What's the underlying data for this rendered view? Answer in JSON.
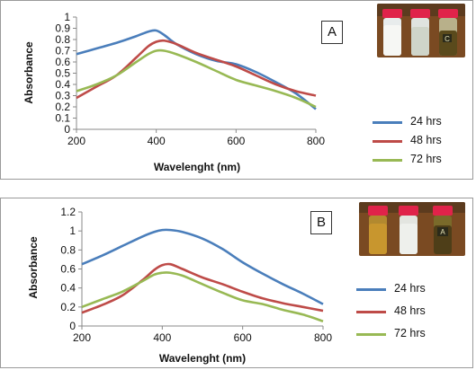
{
  "chart_data": [
    {
      "panel": "A",
      "type": "line",
      "xlabel": "Wavelenght (nm)",
      "ylabel": "Absorbance",
      "xlim": [
        200,
        800
      ],
      "ylim": [
        0,
        1
      ],
      "xticks": [
        "200",
        "400",
        "600",
        "800"
      ],
      "yticks": [
        "0",
        "0.1",
        "0.2",
        "0.3",
        "0.4",
        "0.5",
        "0.6",
        "0.7",
        "0.8",
        "0.9",
        "1"
      ],
      "grid": false,
      "legend": "right",
      "series": [
        {
          "name": "24 hrs",
          "color": "#4a7ebb",
          "x": [
            200,
            250,
            300,
            350,
            380,
            400,
            420,
            450,
            500,
            550,
            600,
            650,
            700,
            750,
            800
          ],
          "y": [
            0.67,
            0.72,
            0.77,
            0.83,
            0.87,
            0.88,
            0.84,
            0.76,
            0.67,
            0.61,
            0.58,
            0.51,
            0.42,
            0.32,
            0.18
          ]
        },
        {
          "name": "48 hrs",
          "color": "#be4b48",
          "x": [
            200,
            250,
            300,
            350,
            380,
            400,
            420,
            450,
            500,
            550,
            600,
            650,
            700,
            750,
            800
          ],
          "y": [
            0.28,
            0.38,
            0.48,
            0.64,
            0.74,
            0.78,
            0.79,
            0.76,
            0.68,
            0.62,
            0.56,
            0.48,
            0.4,
            0.34,
            0.3
          ]
        },
        {
          "name": "72 hrs",
          "color": "#98b954",
          "x": [
            200,
            250,
            300,
            350,
            380,
            400,
            420,
            450,
            500,
            550,
            600,
            650,
            700,
            750,
            800
          ],
          "y": [
            0.34,
            0.4,
            0.48,
            0.6,
            0.67,
            0.7,
            0.7,
            0.67,
            0.6,
            0.52,
            0.44,
            0.39,
            0.34,
            0.28,
            0.2
          ]
        }
      ]
    },
    {
      "panel": "B",
      "type": "line",
      "xlabel": "Wavelenght (nm)",
      "ylabel": "Absorbance",
      "xlim": [
        200,
        800
      ],
      "ylim": [
        0,
        1.2
      ],
      "xticks": [
        "200",
        "400",
        "600",
        "800"
      ],
      "yticks": [
        "0",
        "0.2",
        "0.4",
        "0.6",
        "0.8",
        "1",
        "1.2"
      ],
      "grid": false,
      "legend": "right",
      "series": [
        {
          "name": "24 hrs",
          "color": "#4a7ebb",
          "x": [
            200,
            250,
            300,
            350,
            380,
            400,
            420,
            450,
            500,
            550,
            600,
            650,
            700,
            750,
            800
          ],
          "y": [
            0.65,
            0.74,
            0.84,
            0.94,
            0.99,
            1.01,
            1.01,
            0.99,
            0.92,
            0.81,
            0.67,
            0.55,
            0.44,
            0.34,
            0.23
          ]
        },
        {
          "name": "48 hrs",
          "color": "#be4b48",
          "x": [
            200,
            250,
            300,
            350,
            380,
            400,
            420,
            450,
            500,
            550,
            600,
            650,
            700,
            750,
            800
          ],
          "y": [
            0.14,
            0.22,
            0.32,
            0.48,
            0.59,
            0.64,
            0.65,
            0.6,
            0.51,
            0.44,
            0.36,
            0.29,
            0.24,
            0.2,
            0.16
          ]
        },
        {
          "name": "72 hrs",
          "color": "#98b954",
          "x": [
            200,
            250,
            300,
            350,
            380,
            400,
            420,
            450,
            500,
            550,
            600,
            650,
            700,
            750,
            800
          ],
          "y": [
            0.2,
            0.28,
            0.36,
            0.47,
            0.54,
            0.56,
            0.56,
            0.53,
            0.44,
            0.35,
            0.27,
            0.23,
            0.17,
            0.12,
            0.05
          ]
        }
      ]
    }
  ],
  "panels": {
    "a": {
      "letter": "A",
      "vial_labels": [
        "",
        "",
        "C"
      ]
    },
    "b": {
      "letter": "B",
      "vial_labels": [
        "",
        "",
        "A"
      ]
    }
  },
  "colors": {
    "series_24": "#4a7ebb",
    "series_48": "#be4b48",
    "series_72": "#98b954",
    "cap": "#e0234a",
    "background_photo": "#7a4a22"
  },
  "icons": {
    "vials": "vial-photo"
  }
}
